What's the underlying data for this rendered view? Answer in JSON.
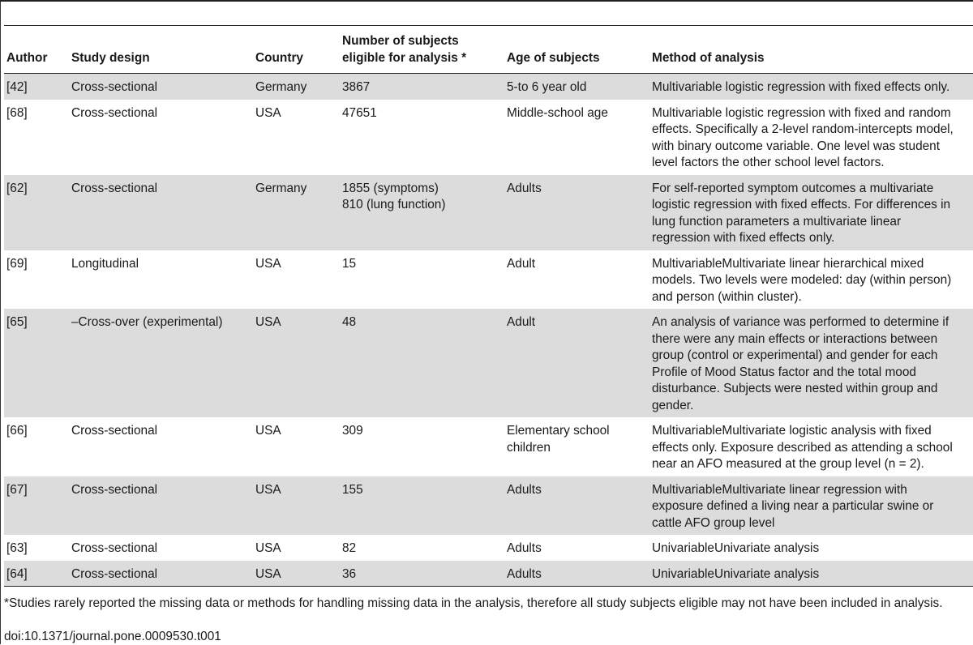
{
  "table": {
    "headers": {
      "author": "Author",
      "design": "Study design",
      "country": "Country",
      "subjects_line1": "Number of subjects",
      "subjects_line2": "eligible for analysis *",
      "age": "Age of subjects",
      "method": "Method of analysis"
    },
    "rows": [
      {
        "author": "[42]",
        "design": "Cross-sectional",
        "country": "Germany",
        "subjects": [
          "3867"
        ],
        "age": [
          "5-to 6 year old"
        ],
        "method": [
          "Multivariable logistic regression with fixed effects only."
        ]
      },
      {
        "author": "[68]",
        "design": "Cross-sectional",
        "country": "USA",
        "subjects": [
          "47651"
        ],
        "age": [
          "Middle-school age"
        ],
        "method": [
          "Multivariable logistic regression with fixed and random",
          "effects. Specifically a 2-level random-intercepts model,",
          "with binary outcome variable. One level was student",
          "level factors the other school level factors."
        ]
      },
      {
        "author": "[62]",
        "design": "Cross-sectional",
        "country": "Germany",
        "subjects": [
          "1855 (symptoms)",
          "810 (lung function)"
        ],
        "age": [
          "Adults"
        ],
        "method": [
          "For self-reported symptom outcomes a multivariate",
          "logistic regression with fixed effects. For differences in",
          "lung function parameters a multivariate linear",
          "regression with fixed effects only."
        ]
      },
      {
        "author": "[69]",
        "design": "Longitudinal",
        "country": "USA",
        "subjects": [
          "15"
        ],
        "age": [
          "Adult"
        ],
        "method": [
          "MultivariableMultivariate linear hierarchical mixed",
          "models. Two levels were modeled: day (within person)",
          "and person (within cluster)."
        ]
      },
      {
        "author": "[65]",
        "design": "–Cross-over (experimental)",
        "country": "USA",
        "subjects": [
          "48"
        ],
        "age": [
          "Adult"
        ],
        "method": [
          "An analysis of variance was performed to determine if",
          "there were any main effects or interactions between",
          "group (control or experimental) and gender for each",
          "Profile of Mood Status factor and the total mood",
          "disturbance. Subjects were nested within group and",
          "gender."
        ]
      },
      {
        "author": "[66]",
        "design": "Cross-sectional",
        "country": "USA",
        "subjects": [
          "309"
        ],
        "age": [
          "Elementary school",
          "children"
        ],
        "method": [
          "MultivariableMultivariate logistic analysis with fixed",
          "effects only. Exposure described as attending a school",
          "near an AFO measured at the group level (n = 2)."
        ]
      },
      {
        "author": "[67]",
        "design": "Cross-sectional",
        "country": "USA",
        "subjects": [
          "155"
        ],
        "age": [
          "Adults"
        ],
        "method": [
          "MultivariableMultivariate linear regression with",
          "exposure defined a living near a particular swine or",
          "cattle AFO group level"
        ]
      },
      {
        "author": "[63]",
        "design": "Cross-sectional",
        "country": "USA",
        "subjects": [
          "82"
        ],
        "age": [
          "Adults"
        ],
        "method": [
          "UnivariableUnivariate analysis"
        ]
      },
      {
        "author": "[64]",
        "design": "Cross-sectional",
        "country": "USA",
        "subjects": [
          "36"
        ],
        "age": [
          "Adults"
        ],
        "method": [
          "UnivariableUnivariate analysis"
        ]
      }
    ]
  },
  "footnote": "*Studies rarely reported the missing data or methods for handling missing data in the analysis, therefore all study subjects eligible may not have been included in analysis.",
  "doi": "doi:10.1371/journal.pone.0009530.t001",
  "colors": {
    "shaded_row": "#dcdcdc",
    "rule": "#222222",
    "text": "#1a1a1a"
  }
}
